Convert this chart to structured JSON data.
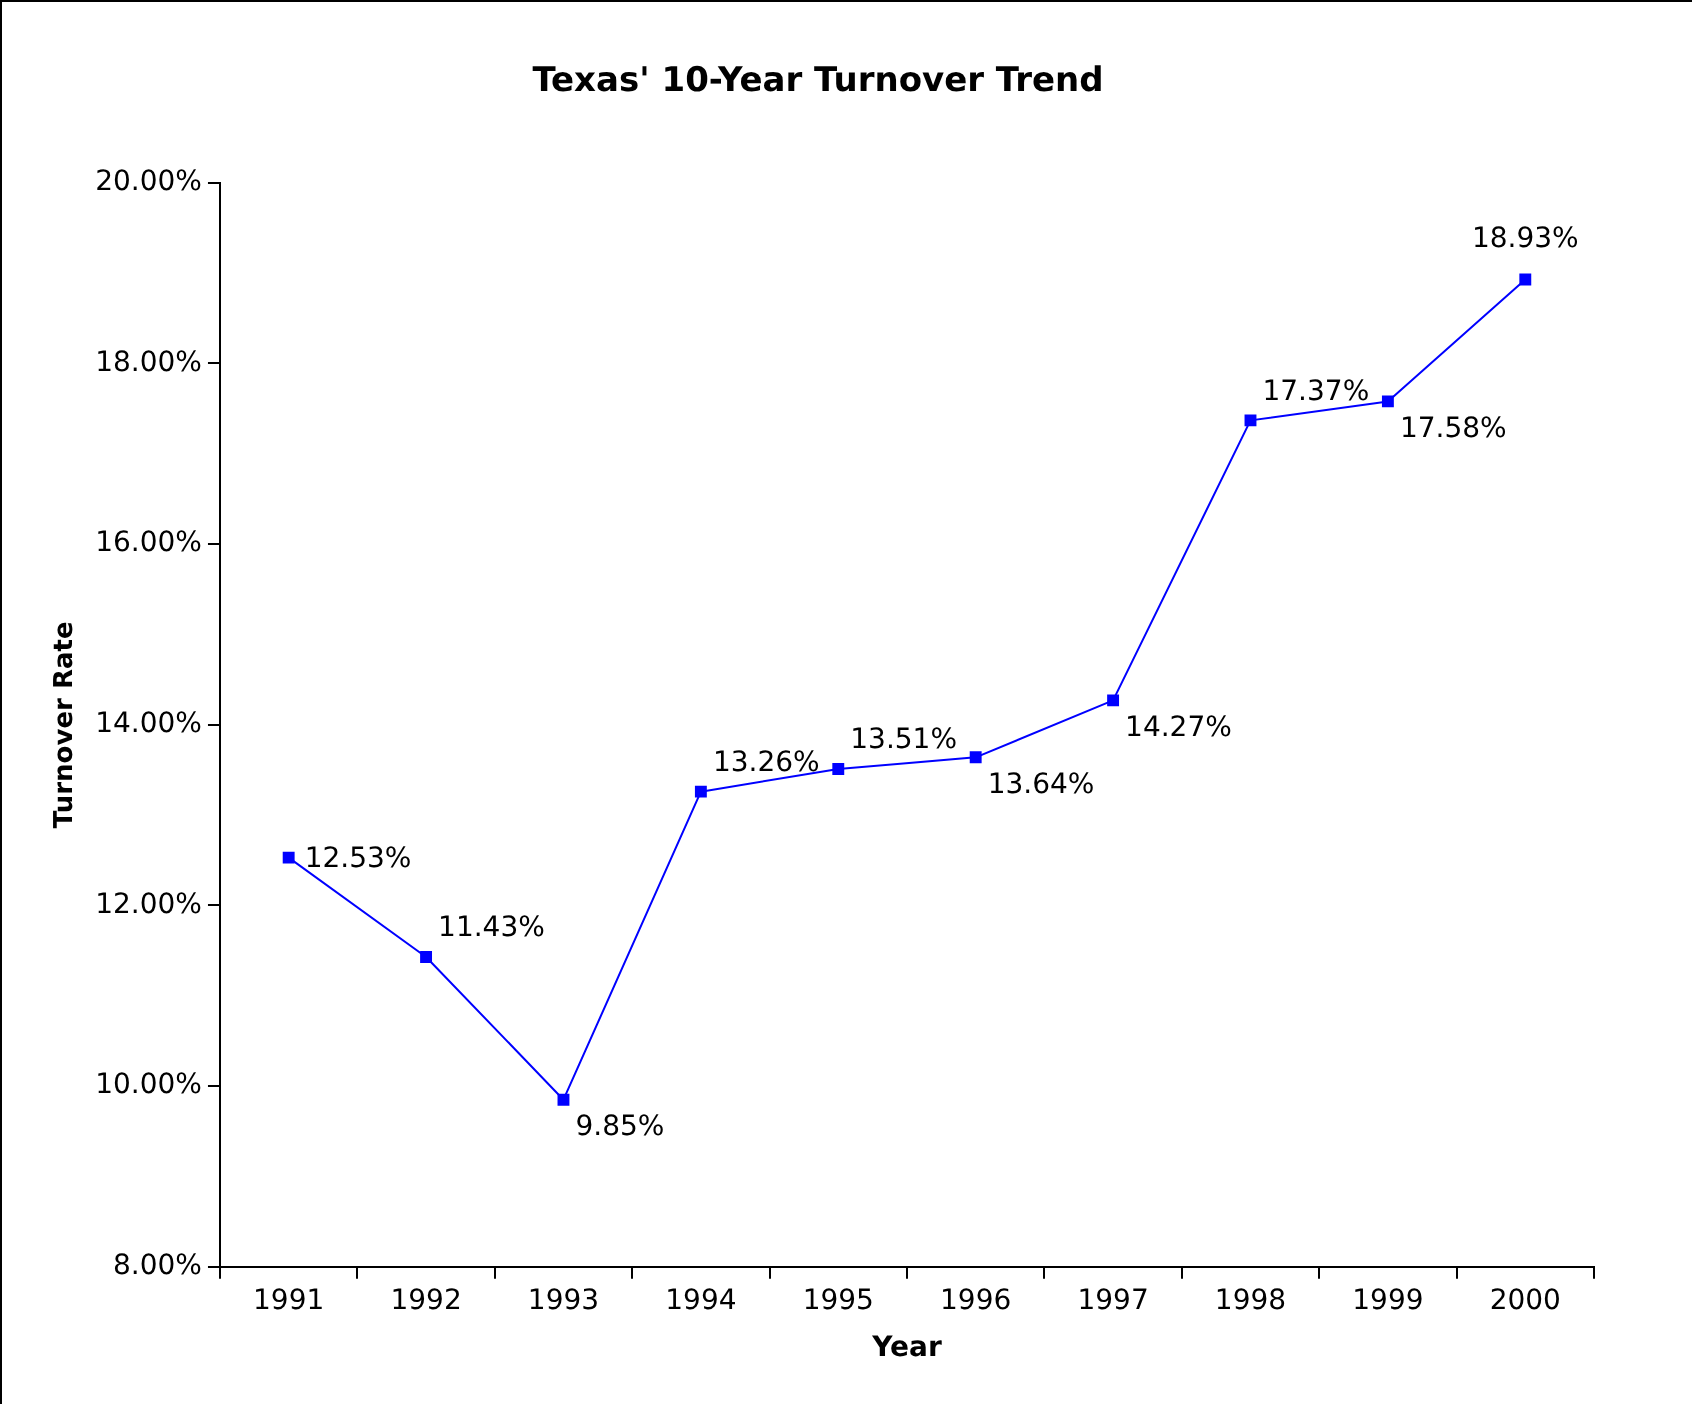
{
  "chart_data": {
    "type": "line",
    "title": "Texas' 10-Year Turnover Trend",
    "xlabel": "Year",
    "ylabel": "Turnover Rate",
    "categories": [
      "1991",
      "1992",
      "1993",
      "1994",
      "1995",
      "1996",
      "1997",
      "1998",
      "1999",
      "2000"
    ],
    "series": [
      {
        "color": "#0000ff",
        "values": [
          12.53,
          11.43,
          9.85,
          13.26,
          13.51,
          13.64,
          14.27,
          17.37,
          17.58,
          18.93
        ]
      }
    ],
    "ylim": [
      8,
      20
    ],
    "yticks": [
      {
        "value": 8,
        "label": "8.00%"
      },
      {
        "value": 10,
        "label": "10.00%"
      },
      {
        "value": 12,
        "label": "12.00%"
      },
      {
        "value": 14,
        "label": "14.00%"
      },
      {
        "value": 16,
        "label": "16.00%"
      },
      {
        "value": 18,
        "label": "18.00%"
      },
      {
        "value": 20,
        "label": "20.00%"
      }
    ],
    "value_labels": [
      "12.53%",
      "11.43%",
      "9.85%",
      "13.26%",
      "13.51%",
      "13.64%",
      "14.27%",
      "17.37%",
      "17.58%",
      "18.93%"
    ],
    "grid": false,
    "legend": false,
    "marker": "square",
    "line_style": "solid"
  }
}
